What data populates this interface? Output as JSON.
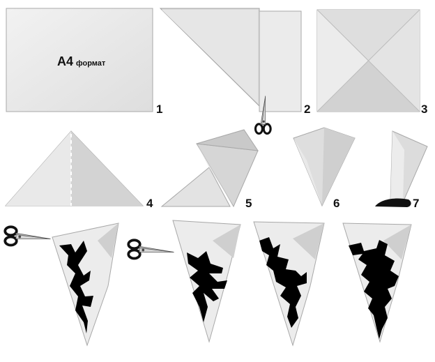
{
  "sheet_label": {
    "size": "A4",
    "word": "формат"
  },
  "steps": [
    {
      "label": "1"
    },
    {
      "label": "2"
    },
    {
      "label": "3"
    },
    {
      "label": "4"
    },
    {
      "label": "5"
    },
    {
      "label": "6"
    },
    {
      "label": "7"
    }
  ],
  "colors": {
    "paper_light": "#ececec",
    "paper_mid": "#d9d9d9",
    "paper_dark": "#c4c4c4",
    "outline": "#9a9a9a",
    "cutout": "#000000"
  },
  "icons": [
    "scissors-icon",
    "scissors-icon",
    "scissors-icon"
  ]
}
